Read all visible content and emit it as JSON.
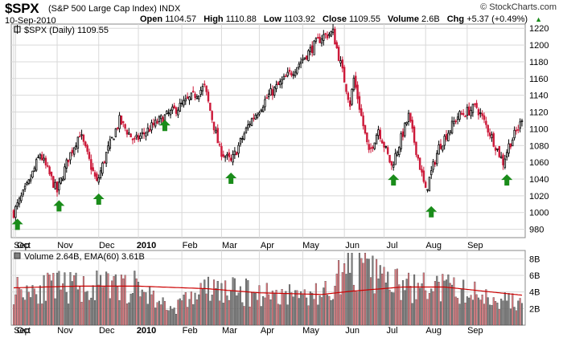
{
  "header": {
    "symbol": "$SPX",
    "name": "(S&P 500 Large Cap Index) INDX",
    "date": "10-Sep-2010",
    "logo": "© StockCharts.com",
    "open_label": "Open",
    "open": "1104.57",
    "high_label": "High",
    "high": "1110.88",
    "low_label": "Low",
    "low": "1103.92",
    "close_label": "Close",
    "close": "1109.55",
    "volume_label": "Volume",
    "volume": "2.6B",
    "chg_label": "Chg",
    "chg": "+5.37 (+0.49%)"
  },
  "colors": {
    "up": "#000000",
    "down": "#cc1a3a",
    "arrow": "#1a8c1a",
    "grid": "#d9d9d9",
    "vol_up": "#808080",
    "vol_down": "#e07a80",
    "ema": "#cc0000",
    "background": "#ffffff"
  },
  "chart_data": [
    {
      "type": "candlestick",
      "legend": "$SPX (Daily) 1109.55",
      "grid": true,
      "ylim": [
        970,
        1225
      ],
      "y_ticks": [
        980,
        1000,
        1020,
        1040,
        1060,
        1080,
        1100,
        1120,
        1140,
        1160,
        1180,
        1200,
        1220
      ],
      "x_ticks": [
        "Sep",
        "Oct",
        "Nov",
        "Dec",
        "2010",
        "Feb",
        "Mar",
        "Apr",
        "May",
        "Jun",
        "Jul",
        "Aug",
        "Sep"
      ],
      "close_anchors": [
        [
          "2009-08-31",
          1000
        ],
        [
          "2009-09-10",
          1035
        ],
        [
          "2009-09-18",
          1070
        ],
        [
          "2009-10-01",
          1025
        ],
        [
          "2009-10-09",
          1065
        ],
        [
          "2009-10-19",
          1095
        ],
        [
          "2009-10-30",
          1035
        ],
        [
          "2009-11-06",
          1070
        ],
        [
          "2009-11-17",
          1110
        ],
        [
          "2009-11-27",
          1085
        ],
        [
          "2009-12-15",
          1108
        ],
        [
          "2010-01-04",
          1130
        ],
        [
          "2010-01-19",
          1150
        ],
        [
          "2010-01-29",
          1075
        ],
        [
          "2010-02-08",
          1060
        ],
        [
          "2010-02-22",
          1108
        ],
        [
          "2010-03-08",
          1140
        ],
        [
          "2010-03-25",
          1170
        ],
        [
          "2010-04-15",
          1210
        ],
        [
          "2010-04-23",
          1215
        ],
        [
          "2010-05-06",
          1130
        ],
        [
          "2010-05-10",
          1160
        ],
        [
          "2010-05-20",
          1070
        ],
        [
          "2010-05-27",
          1100
        ],
        [
          "2010-06-07",
          1055
        ],
        [
          "2010-06-18",
          1115
        ],
        [
          "2010-07-01",
          1025
        ],
        [
          "2010-07-12",
          1078
        ],
        [
          "2010-07-26",
          1115
        ],
        [
          "2010-08-09",
          1126
        ],
        [
          "2010-08-18",
          1095
        ],
        [
          "2010-08-27",
          1060
        ],
        [
          "2010-09-01",
          1080
        ],
        [
          "2010-09-10",
          1109.55
        ]
      ],
      "annotations": [
        {
          "type": "up-arrow",
          "date": "2009-09-02",
          "value": 985
        },
        {
          "type": "up-arrow",
          "date": "2009-10-02",
          "value": 1007
        },
        {
          "type": "up-arrow",
          "date": "2009-11-02",
          "value": 1015
        },
        {
          "type": "up-arrow",
          "date": "2009-12-21",
          "value": 1103
        },
        {
          "type": "up-arrow",
          "date": "2010-02-08",
          "value": 1040
        },
        {
          "type": "up-arrow",
          "date": "2010-06-08",
          "value": 1038
        },
        {
          "type": "up-arrow",
          "date": "2010-07-06",
          "value": 1000
        },
        {
          "type": "up-arrow",
          "date": "2010-08-31",
          "value": 1038
        }
      ]
    },
    {
      "type": "bar",
      "legend": "Volume 2.64B, EMA(60) 3.61B",
      "grid": true,
      "ylim": [
        0,
        9
      ],
      "y_unit": "B",
      "y_ticks": [
        "2B",
        "4B",
        "6B",
        "8B"
      ],
      "x_ticks": [
        "Sep",
        "Oct",
        "Nov",
        "Dec",
        "2010",
        "Feb",
        "Mar",
        "Apr",
        "May",
        "Jun",
        "Jul",
        "Aug",
        "Sep"
      ],
      "ema_period": 60,
      "ema_anchors": [
        [
          "2009-08-31",
          4.5
        ],
        [
          "2009-10-15",
          4.7
        ],
        [
          "2009-12-01",
          4.7
        ],
        [
          "2010-01-20",
          4.4
        ],
        [
          "2010-03-01",
          3.9
        ],
        [
          "2010-04-15",
          3.7
        ],
        [
          "2010-05-07",
          4.1
        ],
        [
          "2010-06-15",
          4.6
        ],
        [
          "2010-07-15",
          4.6
        ],
        [
          "2010-09-10",
          3.61
        ]
      ],
      "volume_anchors": [
        [
          "2009-08-31",
          4.5
        ],
        [
          "2009-10-15",
          4.7
        ],
        [
          "2009-12-01",
          4.7
        ],
        [
          "2009-12-24",
          2.0
        ],
        [
          "2010-01-20",
          4.4
        ],
        [
          "2010-03-01",
          3.9
        ],
        [
          "2010-04-15",
          3.7
        ],
        [
          "2010-05-07",
          7.5
        ],
        [
          "2010-06-15",
          4.6
        ],
        [
          "2010-07-15",
          4.6
        ],
        [
          "2010-09-10",
          2.64
        ]
      ]
    }
  ]
}
